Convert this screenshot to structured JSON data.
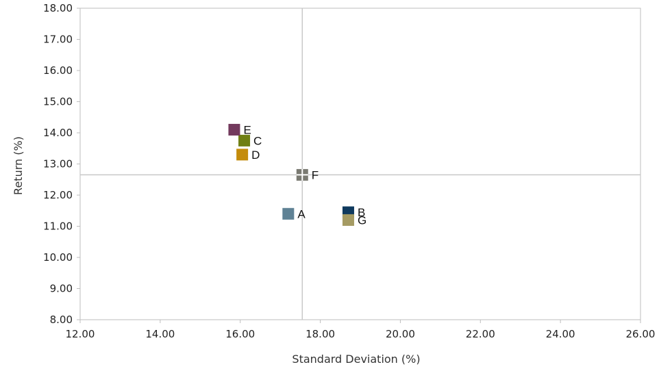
{
  "chart_data": {
    "type": "scatter",
    "xlabel": "Standard Deviation (%)",
    "ylabel": "Return (%)",
    "xlim": [
      12,
      26
    ],
    "ylim": [
      8,
      18
    ],
    "x_ticks": [
      "12.00",
      "14.00",
      "16.00",
      "18.00",
      "20.00",
      "22.00",
      "24.00",
      "26.00"
    ],
    "y_ticks": [
      "8.00",
      "9.00",
      "10.00",
      "11.00",
      "12.00",
      "13.00",
      "14.00",
      "15.00",
      "16.00",
      "17.00",
      "18.00"
    ],
    "grid": false,
    "reference_lines": {
      "x": 17.55,
      "y": 12.65
    },
    "points": [
      {
        "label": "A",
        "x": 17.2,
        "y": 11.4,
        "color": "#5f8295",
        "marker": "square"
      },
      {
        "label": "B",
        "x": 18.7,
        "y": 11.45,
        "color": "#0f3a5e",
        "marker": "square"
      },
      {
        "label": "C",
        "x": 16.1,
        "y": 13.75,
        "color": "#6f7f13",
        "marker": "square"
      },
      {
        "label": "D",
        "x": 16.05,
        "y": 13.3,
        "color": "#c48c0c",
        "marker": "square"
      },
      {
        "label": "E",
        "x": 15.85,
        "y": 14.1,
        "color": "#733a5d",
        "marker": "square"
      },
      {
        "label": "F",
        "x": 17.55,
        "y": 12.65,
        "color": "#7a7a72",
        "marker": "cross-square"
      },
      {
        "label": "G",
        "x": 18.7,
        "y": 11.2,
        "color": "#a59b63",
        "marker": "square"
      }
    ]
  }
}
